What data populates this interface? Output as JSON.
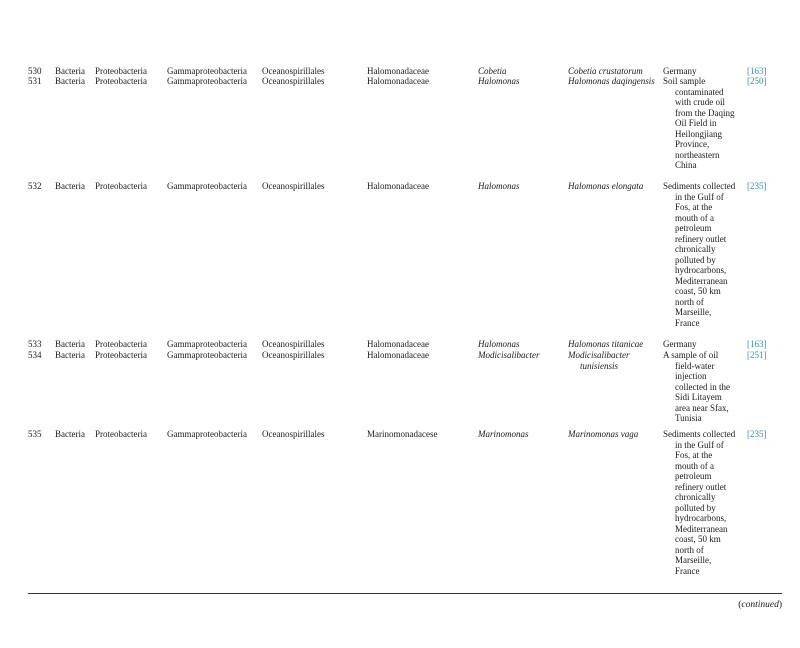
{
  "rows": [
    {
      "num": "530",
      "domain": "Bacteria",
      "phylum": "Proteobacteria",
      "class": "Gammaproteobacteria",
      "order": "Oceanospirillales",
      "family": "Halomonadaceae",
      "genus": "Cobetia",
      "species": "Cobetia crustatorum",
      "location": "Germany",
      "ref": "[163]"
    },
    {
      "num": "531",
      "domain": "Bacteria",
      "phylum": "Proteobacteria",
      "class": "Gammaproteobacteria",
      "order": "Oceanospirillales",
      "family": "Halomonadaceae",
      "genus": "Halomonas",
      "species": "Halomonas daqingensis",
      "location": "Soil sample\ncontaminated\nwith crude oil\nfrom the Daqing\nOil Field in\nHeilongjiang\nProvince,\nnortheastern\nChina",
      "ref": "[250]"
    },
    {
      "num": "532",
      "domain": "Bacteria",
      "phylum": "Proteobacteria",
      "class": "Gammaproteobacteria",
      "order": "Oceanospirillales",
      "family": "Halomonadaceae",
      "genus": "Halomonas",
      "species": "Halomonas elongata",
      "location": "Sediments collected\nin the Gulf of\nFos, at the\nmouth of a\npetroleum\nrefinery outlet\nchronically\npolluted by\nhydrocarbons,\nMediterranean\ncoast, 50 km\nnorth of\nMarseille,\nFrance",
      "ref": "[235]"
    },
    {
      "num": "533",
      "domain": "Bacteria",
      "phylum": "Proteobacteria",
      "class": "Gammaproteobacteria",
      "order": "Oceanospirillales",
      "family": "Halomonadaceae",
      "genus": "Halomonas",
      "species": "Halomonas titanicae",
      "location": "Germany",
      "ref": "[163]"
    },
    {
      "num": "534",
      "domain": "Bacteria",
      "phylum": "Proteobacteria",
      "class": "Gammaproteobacteria",
      "order": "Oceanospirillales",
      "family": "Halomonadaceae",
      "genus": "Modicisalibacter",
      "species": "Modicisalibacter\ntunisiensis",
      "location": "A sample of oil\nfield-water\ninjection\ncollected in the\nSidi Litayem\narea near Sfax,\nTunisia",
      "ref": "[251]"
    },
    {
      "num": "535",
      "domain": "Bacteria",
      "phylum": "Proteobacteria",
      "class": "Gammaproteobacteria",
      "order": "Oceanospirillales",
      "family": "Marinomonadacese",
      "genus": "Marinomonas",
      "species": "Marinomonas vaga",
      "location": "Sediments collected\nin the Gulf of\nFos, at the\nmouth of a\npetroleum\nrefinery outlet\nchronically\npolluted by\nhydrocarbons,\nMediterranean\ncoast, 50 km\nnorth of\nMarseille,\nFrance",
      "ref": "[235]"
    }
  ],
  "footer": {
    "continued": "continued"
  },
  "colors": {
    "reference_link": "#2a8fc0"
  }
}
